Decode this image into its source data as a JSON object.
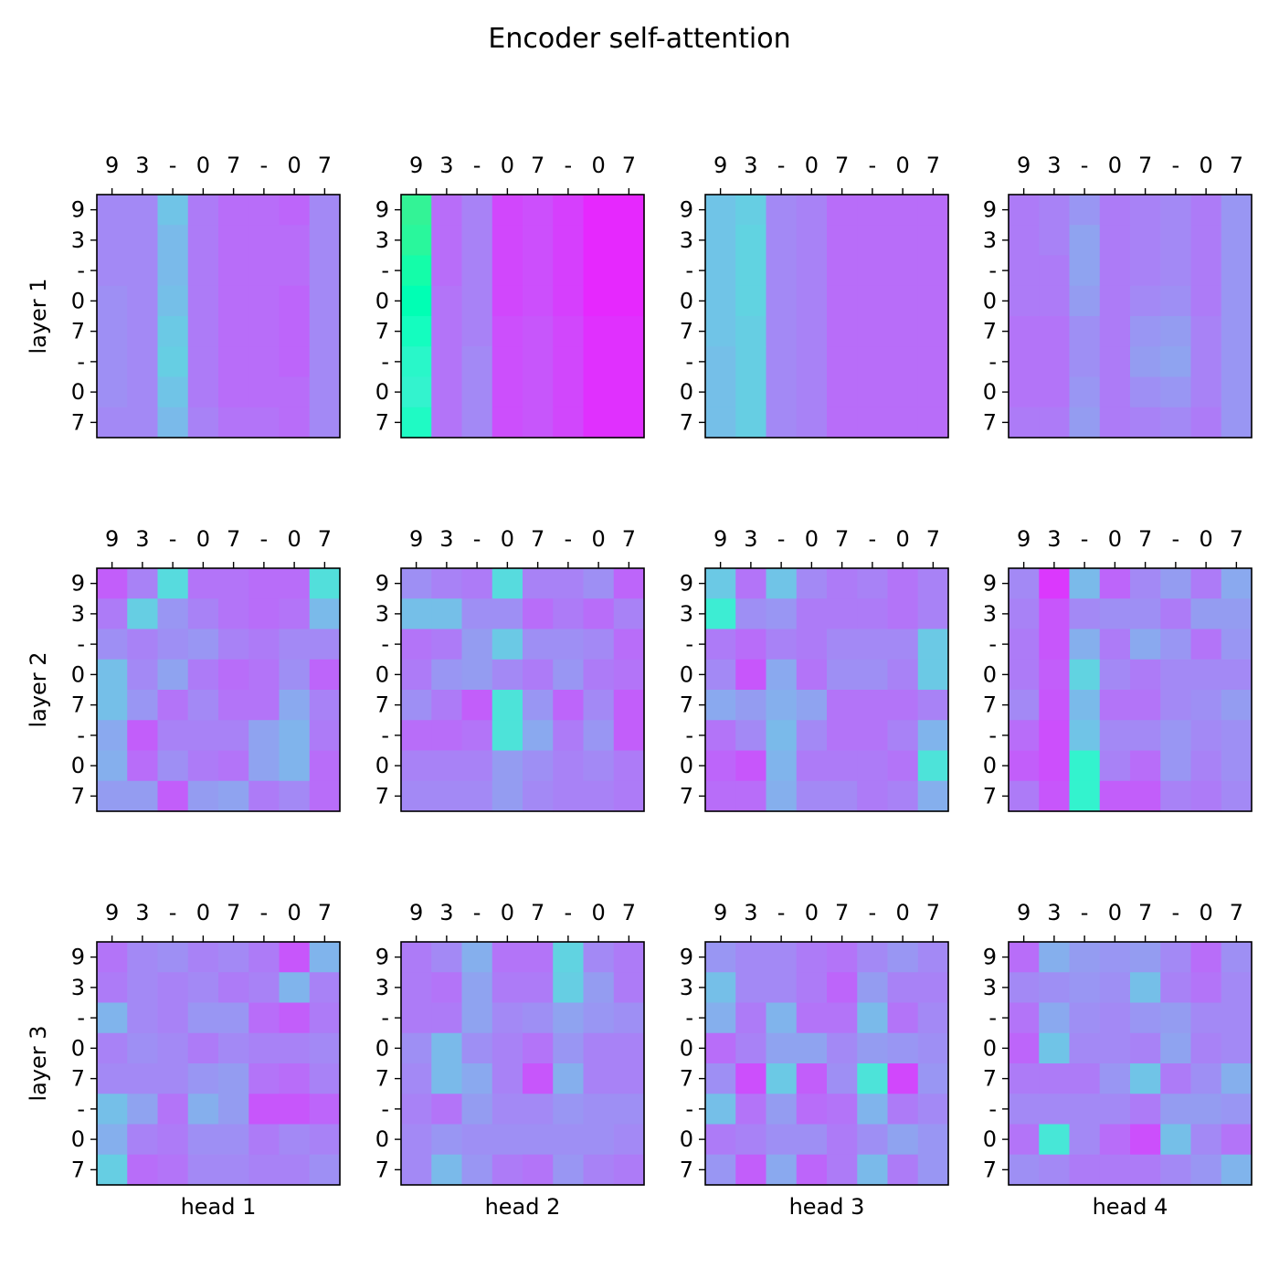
{
  "chart_data": {
    "type": "heatmap",
    "title": "Encoder self-attention",
    "tokens": [
      "9",
      "3",
      "-",
      "0",
      "7",
      "-",
      "0",
      "7"
    ],
    "row_labels": [
      "layer 1",
      "layer 2",
      "layer 3"
    ],
    "col_labels": [
      "head 1",
      "head 2",
      "head 3",
      "head 4"
    ],
    "colormap": "rainbow",
    "value_range": [
      0,
      1
    ],
    "grid": false,
    "panels": [
      [
        [
          [
            0.18,
            0.18,
            0.28,
            0.16,
            0.14,
            0.14,
            0.13,
            0.18
          ],
          [
            0.18,
            0.18,
            0.26,
            0.16,
            0.14,
            0.14,
            0.14,
            0.18
          ],
          [
            0.18,
            0.18,
            0.26,
            0.16,
            0.14,
            0.14,
            0.14,
            0.18
          ],
          [
            0.19,
            0.18,
            0.27,
            0.16,
            0.14,
            0.14,
            0.13,
            0.18
          ],
          [
            0.19,
            0.18,
            0.29,
            0.16,
            0.14,
            0.14,
            0.13,
            0.18
          ],
          [
            0.19,
            0.18,
            0.3,
            0.16,
            0.14,
            0.14,
            0.13,
            0.18
          ],
          [
            0.19,
            0.18,
            0.28,
            0.16,
            0.14,
            0.14,
            0.14,
            0.18
          ],
          [
            0.18,
            0.18,
            0.26,
            0.17,
            0.15,
            0.15,
            0.14,
            0.18
          ]
        ],
        [
          [
            0.6,
            0.14,
            0.17,
            0.09,
            0.1,
            0.08,
            0.05,
            0.05
          ],
          [
            0.58,
            0.14,
            0.17,
            0.09,
            0.1,
            0.08,
            0.05,
            0.05
          ],
          [
            0.54,
            0.14,
            0.17,
            0.09,
            0.1,
            0.08,
            0.05,
            0.05
          ],
          [
            0.5,
            0.15,
            0.17,
            0.09,
            0.1,
            0.08,
            0.05,
            0.05
          ],
          [
            0.46,
            0.15,
            0.17,
            0.1,
            0.11,
            0.09,
            0.06,
            0.06
          ],
          [
            0.42,
            0.15,
            0.18,
            0.1,
            0.11,
            0.09,
            0.06,
            0.06
          ],
          [
            0.4,
            0.15,
            0.18,
            0.1,
            0.11,
            0.09,
            0.06,
            0.06
          ],
          [
            0.44,
            0.15,
            0.18,
            0.1,
            0.11,
            0.09,
            0.06,
            0.06
          ]
        ],
        [
          [
            0.28,
            0.3,
            0.18,
            0.17,
            0.14,
            0.14,
            0.14,
            0.14
          ],
          [
            0.28,
            0.31,
            0.18,
            0.17,
            0.14,
            0.14,
            0.14,
            0.14
          ],
          [
            0.28,
            0.31,
            0.18,
            0.17,
            0.14,
            0.14,
            0.14,
            0.14
          ],
          [
            0.28,
            0.31,
            0.18,
            0.17,
            0.14,
            0.14,
            0.14,
            0.14
          ],
          [
            0.28,
            0.3,
            0.18,
            0.17,
            0.14,
            0.14,
            0.14,
            0.14
          ],
          [
            0.27,
            0.3,
            0.18,
            0.17,
            0.14,
            0.14,
            0.14,
            0.14
          ],
          [
            0.27,
            0.3,
            0.18,
            0.17,
            0.14,
            0.14,
            0.14,
            0.14
          ],
          [
            0.27,
            0.3,
            0.18,
            0.17,
            0.14,
            0.14,
            0.14,
            0.14
          ]
        ],
        [
          [
            0.16,
            0.17,
            0.2,
            0.16,
            0.17,
            0.18,
            0.16,
            0.2
          ],
          [
            0.16,
            0.17,
            0.22,
            0.16,
            0.17,
            0.18,
            0.16,
            0.2
          ],
          [
            0.16,
            0.16,
            0.22,
            0.16,
            0.17,
            0.18,
            0.16,
            0.2
          ],
          [
            0.16,
            0.16,
            0.21,
            0.16,
            0.18,
            0.19,
            0.16,
            0.2
          ],
          [
            0.15,
            0.15,
            0.19,
            0.16,
            0.2,
            0.21,
            0.17,
            0.2
          ],
          [
            0.15,
            0.15,
            0.19,
            0.16,
            0.21,
            0.22,
            0.17,
            0.2
          ],
          [
            0.15,
            0.15,
            0.2,
            0.16,
            0.19,
            0.2,
            0.17,
            0.2
          ],
          [
            0.16,
            0.16,
            0.21,
            0.16,
            0.17,
            0.18,
            0.16,
            0.2
          ]
        ]
      ],
      [
        [
          [
            0.12,
            0.17,
            0.33,
            0.15,
            0.15,
            0.14,
            0.14,
            0.34
          ],
          [
            0.16,
            0.3,
            0.2,
            0.17,
            0.15,
            0.14,
            0.15,
            0.26
          ],
          [
            0.19,
            0.17,
            0.19,
            0.2,
            0.17,
            0.16,
            0.18,
            0.18
          ],
          [
            0.27,
            0.18,
            0.22,
            0.16,
            0.14,
            0.15,
            0.19,
            0.13
          ],
          [
            0.27,
            0.2,
            0.15,
            0.18,
            0.15,
            0.15,
            0.23,
            0.17
          ],
          [
            0.23,
            0.12,
            0.17,
            0.17,
            0.17,
            0.22,
            0.25,
            0.16
          ],
          [
            0.24,
            0.14,
            0.19,
            0.16,
            0.15,
            0.22,
            0.25,
            0.14
          ],
          [
            0.21,
            0.21,
            0.12,
            0.21,
            0.22,
            0.16,
            0.18,
            0.14
          ]
        ],
        [
          [
            0.19,
            0.17,
            0.16,
            0.33,
            0.17,
            0.17,
            0.19,
            0.13
          ],
          [
            0.27,
            0.27,
            0.19,
            0.19,
            0.14,
            0.16,
            0.14,
            0.17
          ],
          [
            0.15,
            0.16,
            0.21,
            0.29,
            0.19,
            0.19,
            0.18,
            0.14
          ],
          [
            0.16,
            0.2,
            0.21,
            0.18,
            0.16,
            0.2,
            0.16,
            0.15
          ],
          [
            0.19,
            0.16,
            0.12,
            0.35,
            0.2,
            0.13,
            0.18,
            0.12
          ],
          [
            0.14,
            0.14,
            0.15,
            0.35,
            0.23,
            0.16,
            0.2,
            0.12
          ],
          [
            0.17,
            0.17,
            0.17,
            0.21,
            0.19,
            0.17,
            0.18,
            0.16
          ],
          [
            0.18,
            0.18,
            0.18,
            0.21,
            0.18,
            0.17,
            0.17,
            0.16
          ]
        ],
        [
          [
            0.29,
            0.15,
            0.28,
            0.18,
            0.16,
            0.17,
            0.15,
            0.17
          ],
          [
            0.38,
            0.19,
            0.2,
            0.16,
            0.16,
            0.16,
            0.15,
            0.17
          ],
          [
            0.16,
            0.14,
            0.17,
            0.16,
            0.18,
            0.18,
            0.18,
            0.29
          ],
          [
            0.18,
            0.11,
            0.23,
            0.15,
            0.19,
            0.19,
            0.17,
            0.29
          ],
          [
            0.23,
            0.21,
            0.24,
            0.22,
            0.15,
            0.15,
            0.15,
            0.17
          ],
          [
            0.15,
            0.18,
            0.26,
            0.18,
            0.15,
            0.15,
            0.17,
            0.25
          ],
          [
            0.13,
            0.11,
            0.25,
            0.16,
            0.16,
            0.16,
            0.15,
            0.35
          ],
          [
            0.14,
            0.14,
            0.24,
            0.18,
            0.18,
            0.16,
            0.17,
            0.24
          ]
        ],
        [
          [
            0.18,
            0.07,
            0.26,
            0.13,
            0.18,
            0.21,
            0.16,
            0.23
          ],
          [
            0.17,
            0.11,
            0.18,
            0.19,
            0.19,
            0.16,
            0.21,
            0.21
          ],
          [
            0.16,
            0.11,
            0.24,
            0.16,
            0.23,
            0.2,
            0.15,
            0.2
          ],
          [
            0.16,
            0.12,
            0.31,
            0.18,
            0.16,
            0.18,
            0.18,
            0.18
          ],
          [
            0.18,
            0.11,
            0.26,
            0.15,
            0.15,
            0.18,
            0.19,
            0.21
          ],
          [
            0.14,
            0.1,
            0.28,
            0.18,
            0.18,
            0.2,
            0.18,
            0.19
          ],
          [
            0.12,
            0.1,
            0.4,
            0.17,
            0.14,
            0.2,
            0.17,
            0.19
          ],
          [
            0.16,
            0.11,
            0.4,
            0.12,
            0.12,
            0.17,
            0.16,
            0.18
          ]
        ]
      ],
      [
        [
          [
            0.15,
            0.18,
            0.19,
            0.17,
            0.18,
            0.16,
            0.11,
            0.25
          ],
          [
            0.16,
            0.18,
            0.17,
            0.18,
            0.16,
            0.17,
            0.25,
            0.17
          ],
          [
            0.25,
            0.18,
            0.17,
            0.2,
            0.2,
            0.14,
            0.12,
            0.16
          ],
          [
            0.17,
            0.19,
            0.18,
            0.16,
            0.18,
            0.17,
            0.17,
            0.18
          ],
          [
            0.18,
            0.18,
            0.18,
            0.2,
            0.21,
            0.15,
            0.14,
            0.17
          ],
          [
            0.27,
            0.22,
            0.15,
            0.24,
            0.21,
            0.11,
            0.11,
            0.13
          ],
          [
            0.24,
            0.17,
            0.16,
            0.19,
            0.19,
            0.16,
            0.18,
            0.17
          ],
          [
            0.3,
            0.14,
            0.15,
            0.18,
            0.18,
            0.17,
            0.17,
            0.19
          ]
        ],
        [
          [
            0.16,
            0.18,
            0.24,
            0.15,
            0.15,
            0.31,
            0.18,
            0.16
          ],
          [
            0.16,
            0.15,
            0.22,
            0.16,
            0.16,
            0.3,
            0.21,
            0.16
          ],
          [
            0.16,
            0.16,
            0.22,
            0.18,
            0.19,
            0.22,
            0.2,
            0.19
          ],
          [
            0.19,
            0.26,
            0.19,
            0.17,
            0.15,
            0.2,
            0.17,
            0.17
          ],
          [
            0.18,
            0.26,
            0.23,
            0.17,
            0.11,
            0.24,
            0.17,
            0.17
          ],
          [
            0.17,
            0.15,
            0.21,
            0.18,
            0.18,
            0.2,
            0.19,
            0.19
          ],
          [
            0.18,
            0.2,
            0.19,
            0.19,
            0.19,
            0.19,
            0.19,
            0.18
          ],
          [
            0.18,
            0.26,
            0.2,
            0.16,
            0.15,
            0.2,
            0.17,
            0.16
          ]
        ],
        [
          [
            0.2,
            0.18,
            0.18,
            0.16,
            0.15,
            0.18,
            0.2,
            0.18
          ],
          [
            0.27,
            0.18,
            0.18,
            0.16,
            0.13,
            0.21,
            0.17,
            0.17
          ],
          [
            0.24,
            0.16,
            0.25,
            0.15,
            0.15,
            0.26,
            0.15,
            0.18
          ],
          [
            0.14,
            0.17,
            0.22,
            0.22,
            0.18,
            0.21,
            0.2,
            0.19
          ],
          [
            0.19,
            0.1,
            0.29,
            0.12,
            0.19,
            0.35,
            0.09,
            0.2
          ],
          [
            0.27,
            0.15,
            0.21,
            0.14,
            0.15,
            0.25,
            0.16,
            0.18
          ],
          [
            0.16,
            0.17,
            0.19,
            0.19,
            0.16,
            0.19,
            0.22,
            0.2
          ],
          [
            0.2,
            0.12,
            0.23,
            0.13,
            0.16,
            0.26,
            0.16,
            0.2
          ]
        ],
        [
          [
            0.14,
            0.24,
            0.21,
            0.2,
            0.21,
            0.18,
            0.14,
            0.19
          ],
          [
            0.18,
            0.19,
            0.2,
            0.19,
            0.27,
            0.17,
            0.15,
            0.18
          ],
          [
            0.15,
            0.23,
            0.19,
            0.18,
            0.2,
            0.21,
            0.18,
            0.18
          ],
          [
            0.13,
            0.28,
            0.18,
            0.18,
            0.17,
            0.22,
            0.17,
            0.18
          ],
          [
            0.16,
            0.16,
            0.16,
            0.2,
            0.28,
            0.16,
            0.19,
            0.24
          ],
          [
            0.18,
            0.18,
            0.18,
            0.18,
            0.16,
            0.21,
            0.21,
            0.2
          ],
          [
            0.15,
            0.36,
            0.18,
            0.14,
            0.1,
            0.27,
            0.18,
            0.15
          ],
          [
            0.19,
            0.18,
            0.16,
            0.16,
            0.16,
            0.18,
            0.2,
            0.25
          ]
        ]
      ]
    ]
  }
}
